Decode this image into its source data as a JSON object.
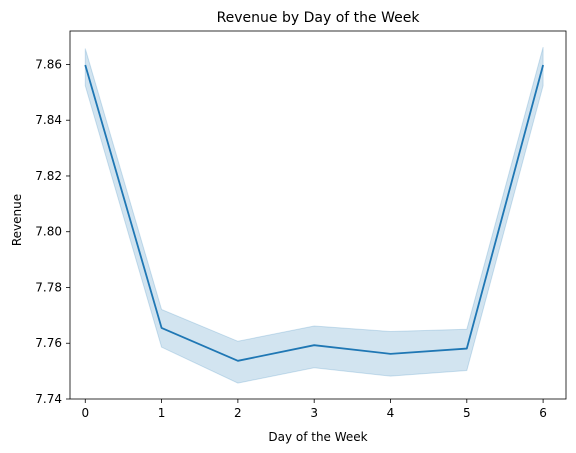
{
  "chart_data": {
    "type": "line",
    "title": "Revenue by Day of the Week",
    "xlabel": "Day of the Week",
    "ylabel": "Revenue",
    "x": [
      0,
      1,
      2,
      3,
      4,
      5,
      6
    ],
    "xlim": [
      -0.2,
      6.3
    ],
    "ylim": [
      7.74,
      7.872
    ],
    "xticks": [
      0,
      1,
      2,
      3,
      4,
      5,
      6
    ],
    "yticks": [
      7.74,
      7.76,
      7.78,
      7.8,
      7.82,
      7.84,
      7.86
    ],
    "ytick_labels": [
      "7.74",
      "7.76",
      "7.78",
      "7.80",
      "7.82",
      "7.84",
      "7.86"
    ],
    "grid": false,
    "series": [
      {
        "values": [
          7.8598,
          7.7655,
          7.7537,
          7.7593,
          7.7562,
          7.7581,
          7.8598
        ],
        "ci_lower": [
          7.8524,
          7.7586,
          7.7457,
          7.7512,
          7.7482,
          7.7502,
          7.8524
        ],
        "ci_upper": [
          7.8657,
          7.7721,
          7.7607,
          7.7662,
          7.7642,
          7.765,
          7.8662
        ],
        "color": "#1f77b4",
        "band_color": "#1f77b4"
      }
    ]
  }
}
